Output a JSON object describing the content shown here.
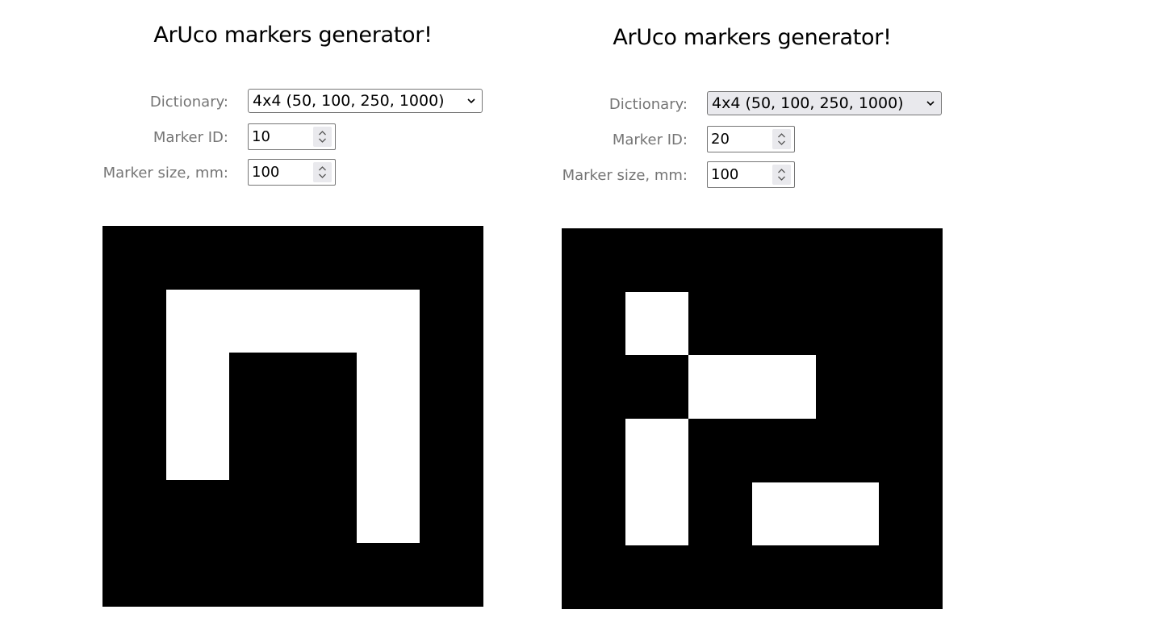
{
  "panels": [
    {
      "title": "ArUco markers generator!",
      "dictionary_label": "Dictionary:",
      "dictionary_value": "4x4 (50, 100, 250, 1000)",
      "marker_id_label": "Marker ID:",
      "marker_id_value": "10",
      "marker_size_label": "Marker size, mm:",
      "marker_size_value": "100",
      "marker_bits": [
        [
          1,
          1,
          1,
          1
        ],
        [
          1,
          0,
          0,
          1
        ],
        [
          1,
          0,
          0,
          1
        ],
        [
          0,
          0,
          0,
          1
        ]
      ]
    },
    {
      "title": "ArUco markers generator!",
      "dictionary_label": "Dictionary:",
      "dictionary_value": "4x4 (50, 100, 250, 1000)",
      "marker_id_label": "Marker ID:",
      "marker_id_value": "20",
      "marker_size_label": "Marker size, mm:",
      "marker_size_value": "100",
      "marker_bits": [
        [
          1,
          0,
          0,
          0
        ],
        [
          0,
          1,
          1,
          0
        ],
        [
          1,
          0,
          0,
          0
        ],
        [
          1,
          0,
          1,
          1
        ]
      ]
    }
  ],
  "icons": {
    "select_arrow": "chevron-down-icon",
    "spinner": "spinner-arrows-icon"
  },
  "colors": {
    "label": "#757575",
    "marker_black": "#000000",
    "marker_white": "#ffffff"
  }
}
